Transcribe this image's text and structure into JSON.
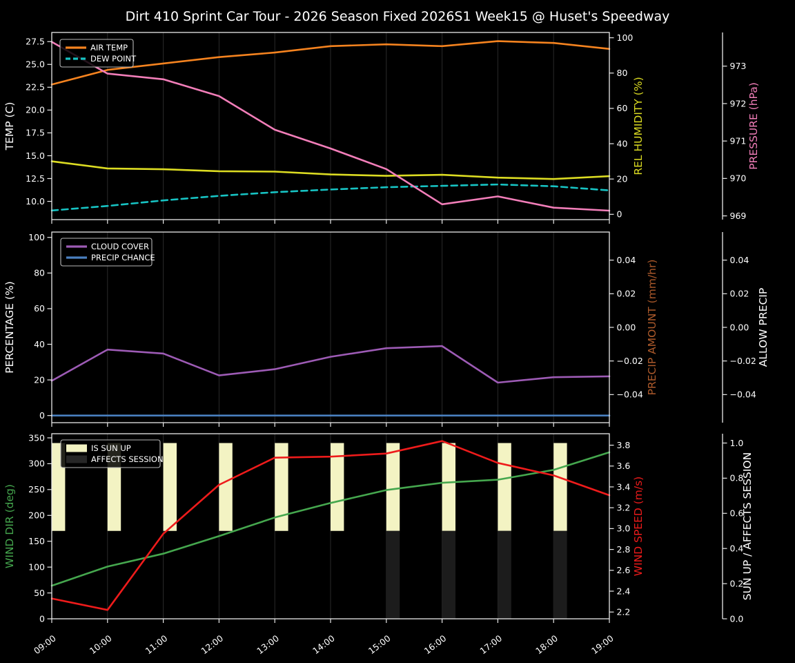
{
  "title": "Dirt 410 Sprint Car Tour - 2026 Season Fixed 2026S1 Week15 @ Huset's Speedway",
  "figure": {
    "background": "#000000",
    "text_color": "#ffffff",
    "grid_color": "#2a2a2a",
    "spine_color": "#ebebeb",
    "legend_border_color": "#b9b9b9"
  },
  "chart_data": {
    "type": "line",
    "x_hours": [
      9,
      10,
      11,
      12,
      13,
      14,
      15,
      16,
      17,
      18,
      19
    ],
    "x_tick_labels": [
      "09:00",
      "10:00",
      "11:00",
      "12:00",
      "13:00",
      "14:00",
      "15:00",
      "16:00",
      "17:00",
      "18:00",
      "19:00"
    ],
    "panels": [
      {
        "name": "temperature-panel",
        "axes": {
          "left": {
            "label": "TEMP (C)",
            "color": "#ffffff",
            "range": [
              8.0,
              28.5
            ],
            "tick_vals": [
              10,
              12.5,
              15,
              17.5,
              20,
              22.5,
              25,
              27.5
            ],
            "tick_labels": [
              "10.0",
              "12.5",
              "15.0",
              "17.5",
              "20.0",
              "22.5",
              "25.0",
              "27.5"
            ]
          },
          "right1": {
            "label": "REL HUMIDITY (%)",
            "color": "#dcdc22",
            "range": [
              -3,
              103
            ],
            "tick_vals": [
              0,
              20,
              40,
              60,
              80,
              100
            ],
            "tick_labels": [
              "0",
              "20",
              "40",
              "60",
              "80",
              "100"
            ]
          },
          "right2": {
            "label": "PRESSURE (hPa)",
            "color": "#f27eb9",
            "range": [
              968.9,
              973.9
            ],
            "tick_vals": [
              969,
              970,
              971,
              972,
              973
            ],
            "tick_labels": [
              "969",
              "970",
              "971",
              "972",
              "973"
            ]
          }
        },
        "series": [
          {
            "key": "air_temp",
            "label": "AIR TEMP",
            "axis": "left",
            "color": "#f5831f",
            "style": "solid",
            "values": [
              22.8,
              24.4,
              25.1,
              25.8,
              26.3,
              27.0,
              27.2,
              27.0,
              27.55,
              27.35,
              26.7
            ]
          },
          {
            "key": "dew_point",
            "label": "DEW POINT",
            "axis": "left",
            "color": "#17c3c3",
            "style": "dashed",
            "values": [
              9.0,
              9.5,
              10.1,
              10.6,
              11.0,
              11.3,
              11.55,
              11.7,
              11.85,
              11.65,
              11.2
            ]
          },
          {
            "key": "rel_humidity",
            "label": "REL HUMIDITY",
            "axis": "right1",
            "color": "#dcdc22",
            "style": "solid",
            "values": [
              30,
              26,
              25.5,
              24.4,
              24.2,
              22.6,
              21.8,
              22.4,
              20.8,
              20.0,
              21.6
            ]
          },
          {
            "key": "pressure",
            "label": "PRESSURE",
            "axis": "right2",
            "color": "#f27eb9",
            "style": "solid",
            "values": [
              973.65,
              972.8,
              972.65,
              972.2,
              971.3,
              970.8,
              970.25,
              969.31,
              969.52,
              969.22,
              969.14
            ]
          }
        ],
        "legend": [
          {
            "label": "AIR TEMP",
            "swatch": "line",
            "color": "#f5831f",
            "dashed": false
          },
          {
            "label": "DEW POINT",
            "swatch": "line",
            "color": "#17c3c3",
            "dashed": true
          }
        ]
      },
      {
        "name": "cloud-precip-panel",
        "axes": {
          "left": {
            "label": "PERCENTAGE (%)",
            "color": "#ffffff",
            "range": [
              -4,
              103
            ],
            "tick_vals": [
              0,
              20,
              40,
              60,
              80,
              100
            ],
            "tick_labels": [
              "0",
              "20",
              "40",
              "60",
              "80",
              "100"
            ]
          },
          "right1": {
            "label": "PRECIP AMOUNT (mm/hr)",
            "color": "#ad5a2b",
            "range": [
              -0.0567,
              0.0567
            ],
            "tick_vals": [
              0.04,
              0.02,
              0,
              -0.02,
              -0.04
            ],
            "tick_labels": [
              "0.04",
              "0.02",
              "0.00",
              "−0.02",
              "−0.04"
            ]
          },
          "right2": {
            "label": "ALLOW PRECIP",
            "color": "#ffffff",
            "range": [
              -0.0567,
              0.0567
            ],
            "tick_vals": [
              0.04,
              0.02,
              0,
              -0.02,
              -0.04
            ],
            "tick_labels": [
              "0.04",
              "0.02",
              "0.00",
              "−0.02",
              "−0.04"
            ]
          }
        },
        "series": [
          {
            "key": "cloud_cover",
            "label": "CLOUD COVER",
            "axis": "left",
            "color": "#9d5bb5",
            "style": "solid",
            "values": [
              19.5,
              37,
              34.8,
              22.5,
              26,
              33,
              37.8,
              39,
              18.5,
              21.5,
              22
            ]
          },
          {
            "key": "precip_chance",
            "label": "PRECIP CHANCE",
            "axis": "left",
            "color": "#4a80c0",
            "style": "solid",
            "values": [
              0,
              0,
              0,
              0,
              0,
              0,
              0,
              0,
              0,
              0,
              0
            ]
          }
        ],
        "legend": [
          {
            "label": "CLOUD COVER",
            "swatch": "line",
            "color": "#9d5bb5",
            "dashed": false
          },
          {
            "label": "PRECIP CHANCE",
            "swatch": "line",
            "color": "#4a80c0",
            "dashed": false
          }
        ]
      },
      {
        "name": "wind-sun-panel",
        "axes": {
          "left": {
            "label": "WIND DIR (deg)",
            "color": "#45a74e",
            "range": [
              0,
              358
            ],
            "tick_vals": [
              0,
              50,
              100,
              150,
              200,
              250,
              300,
              350
            ],
            "tick_labels": [
              "0",
              "50",
              "100",
              "150",
              "200",
              "250",
              "300",
              "350"
            ]
          },
          "right1": {
            "label": "WIND SPEED (m/s)",
            "color": "#ee1b1b",
            "range": [
              2.135,
              3.91
            ],
            "tick_vals": [
              2.2,
              2.4,
              2.6,
              2.8,
              3.0,
              3.2,
              3.4,
              3.6,
              3.8
            ],
            "tick_labels": [
              "2.2",
              "2.4",
              "2.6",
              "2.8",
              "3.0",
              "3.2",
              "3.4",
              "3.6",
              "3.8"
            ]
          },
          "right2": {
            "label": "SUN UP / AFFECTS SESSION",
            "color": "#ffffff",
            "range": [
              0,
              1.053
            ],
            "tick_vals": [
              0,
              0.2,
              0.4,
              0.6,
              0.8,
              1.0
            ],
            "tick_labels": [
              "0.0",
              "0.2",
              "0.4",
              "0.6",
              "0.8",
              "1.0"
            ]
          }
        },
        "series": [
          {
            "key": "is_sun_up",
            "label": "IS SUN UP",
            "axis": "right2",
            "type": "bar",
            "color": "#f3f3c3",
            "bar_base": 0.5,
            "bar_top": 1.0,
            "bar_hours": [
              9,
              10,
              11,
              12,
              13,
              14,
              15,
              16,
              17,
              18
            ],
            "values": [
              1,
              1,
              1,
              1,
              1,
              1,
              1,
              1,
              1,
              1
            ]
          },
          {
            "key": "affects_session",
            "label": "AFFECTS SESSION",
            "axis": "right2",
            "type": "bar",
            "color": "#1c1c1c",
            "bar_base": 0.0,
            "bar_top": 0.5,
            "bar_hours": [
              9,
              10,
              11,
              12,
              13,
              14,
              15,
              16,
              17,
              18
            ],
            "values": [
              0,
              0,
              0,
              0,
              0,
              0,
              1,
              1,
              1,
              1
            ]
          },
          {
            "key": "wind_dir",
            "label": "WIND DIR",
            "axis": "left",
            "color": "#45a74e",
            "style": "solid",
            "values": [
              64,
              101,
              126,
              160,
              196,
              224,
              249,
              263,
              269,
              288,
              322
            ]
          },
          {
            "key": "wind_speed",
            "label": "WIND SPEED",
            "axis": "right1",
            "color": "#ee1b1b",
            "style": "solid",
            "values": [
              2.33,
              2.22,
              2.95,
              3.42,
              3.68,
              3.69,
              3.72,
              3.84,
              3.63,
              3.51,
              3.32
            ]
          }
        ],
        "legend": [
          {
            "label": "IS SUN UP",
            "swatch": "patch",
            "color": "#f3f3c3"
          },
          {
            "label": "AFFECTS SESSION",
            "swatch": "patch",
            "color": "#262626"
          }
        ]
      }
    ]
  }
}
